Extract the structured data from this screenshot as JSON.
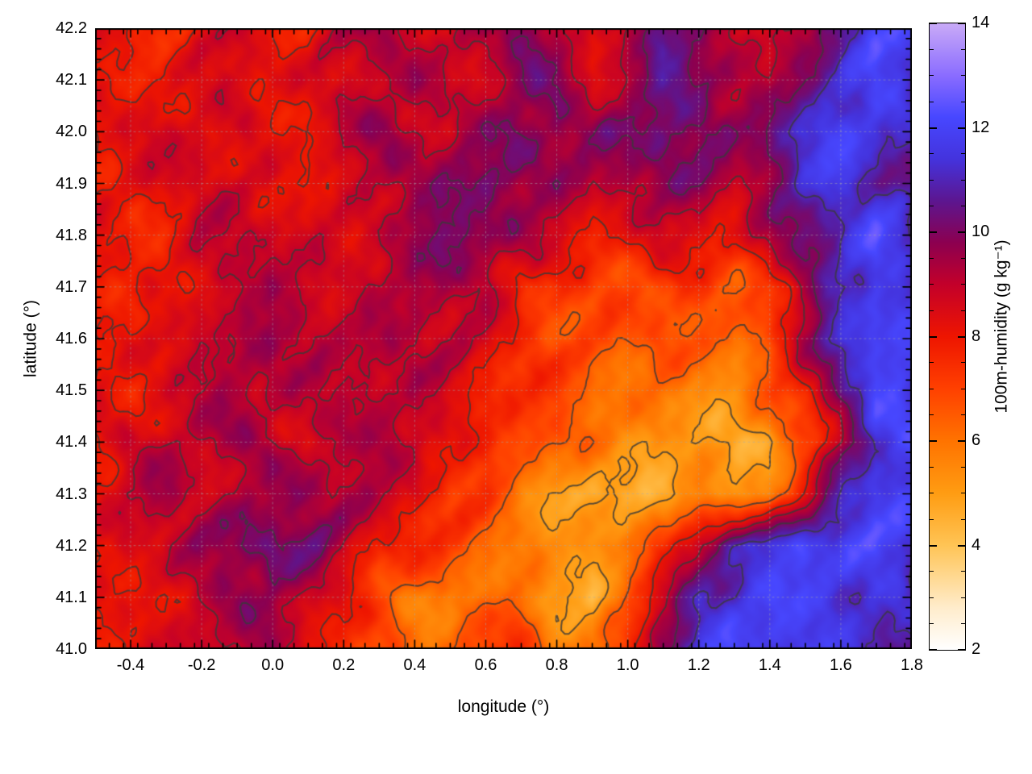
{
  "chart_data": {
    "type": "heatmap",
    "title": "",
    "xlabel": "longitude (°)",
    "ylabel": "latitude (°)",
    "colorbar_label": "100m-humidity (g kg⁻¹)",
    "xlim": [
      -0.5,
      1.8
    ],
    "ylim": [
      41.0,
      42.2
    ],
    "clim": [
      2,
      14
    ],
    "grid": "dotted",
    "x_tick_values": [
      -0.4,
      -0.2,
      0.0,
      0.2,
      0.4,
      0.6,
      0.8,
      1.0,
      1.2,
      1.4,
      1.6,
      1.8
    ],
    "x_tick_labels": [
      "-0.4",
      "-0.2",
      "0.0",
      "0.2",
      "0.4",
      "0.6",
      "0.8",
      "1.0",
      "1.2",
      "1.4",
      "1.6",
      "1.8"
    ],
    "y_tick_values": [
      41.0,
      41.1,
      41.2,
      41.3,
      41.4,
      41.5,
      41.6,
      41.7,
      41.8,
      41.9,
      42.0,
      42.1,
      42.2
    ],
    "y_tick_labels": [
      "41.0",
      "41.1",
      "41.2",
      "41.3",
      "41.4",
      "41.5",
      "41.6",
      "41.7",
      "41.8",
      "41.9",
      "42.0",
      "42.1",
      "42.2"
    ],
    "cb_tick_values": [
      2,
      4,
      6,
      8,
      10,
      12,
      14
    ],
    "cb_tick_labels": [
      "2",
      "4",
      "6",
      "8",
      "10",
      "12",
      "14"
    ],
    "contour": {
      "color": "#3a3a3a",
      "levels": [
        5,
        6.5,
        8,
        9,
        10,
        11
      ]
    },
    "colormap": [
      [
        2.0,
        "#ffffff"
      ],
      [
        2.8,
        "#ffeccc"
      ],
      [
        4.0,
        "#ffc455"
      ],
      [
        5.0,
        "#ff9c12"
      ],
      [
        6.0,
        "#ff7300"
      ],
      [
        7.0,
        "#ff4000"
      ],
      [
        8.0,
        "#ee1500"
      ],
      [
        9.0,
        "#c3002a"
      ],
      [
        9.8,
        "#8c0050"
      ],
      [
        10.6,
        "#5c1690"
      ],
      [
        11.4,
        "#4433dd"
      ],
      [
        12.2,
        "#4747ff"
      ],
      [
        13.0,
        "#8a6cff"
      ],
      [
        14.0,
        "#c9aaf7"
      ]
    ],
    "grid_lon": [
      -0.5,
      -0.4,
      -0.3,
      -0.2,
      -0.1,
      0.0,
      0.1,
      0.2,
      0.3,
      0.4,
      0.5,
      0.6,
      0.7,
      0.8,
      0.9,
      1.0,
      1.1,
      1.2,
      1.3,
      1.4,
      1.5,
      1.6,
      1.7,
      1.8
    ],
    "grid_lat": [
      42.2,
      42.1,
      42.0,
      41.9,
      41.8,
      41.7,
      41.6,
      41.5,
      41.4,
      41.3,
      41.2,
      41.1,
      41.0
    ],
    "values": [
      [
        8.0,
        7.8,
        7.8,
        8.2,
        8.5,
        8.2,
        8.0,
        8.8,
        9.6,
        9.0,
        8.4,
        9.4,
        10.0,
        9.2,
        8.2,
        9.2,
        10.4,
        10.0,
        9.0,
        8.2,
        9.2,
        11.0,
        12.0,
        11.6
      ],
      [
        8.0,
        7.8,
        8.0,
        8.4,
        8.8,
        8.4,
        8.2,
        8.6,
        9.4,
        9.2,
        8.6,
        9.0,
        10.0,
        9.6,
        8.6,
        9.4,
        10.4,
        10.0,
        9.6,
        9.0,
        10.0,
        11.4,
        12.0,
        11.4
      ],
      [
        8.2,
        8.4,
        8.8,
        8.6,
        8.2,
        8.0,
        8.4,
        9.0,
        9.4,
        9.2,
        9.0,
        9.4,
        10.0,
        10.0,
        9.6,
        10.0,
        10.4,
        10.0,
        9.6,
        10.4,
        11.4,
        12.0,
        11.6,
        11.0
      ],
      [
        8.0,
        8.0,
        8.4,
        9.0,
        8.6,
        8.2,
        8.0,
        8.6,
        9.0,
        9.6,
        10.0,
        10.0,
        10.0,
        9.6,
        9.0,
        9.6,
        10.0,
        9.6,
        9.0,
        10.0,
        11.0,
        11.6,
        11.0,
        10.6
      ],
      [
        8.0,
        7.8,
        8.0,
        8.6,
        9.0,
        9.0,
        8.6,
        8.2,
        9.0,
        9.6,
        10.0,
        10.0,
        9.4,
        8.6,
        8.0,
        8.0,
        8.4,
        8.8,
        8.0,
        9.0,
        10.4,
        11.4,
        12.0,
        11.0
      ],
      [
        8.0,
        7.6,
        8.0,
        8.6,
        9.0,
        9.4,
        9.0,
        8.6,
        9.0,
        9.6,
        9.4,
        9.0,
        8.0,
        7.4,
        7.0,
        7.0,
        7.4,
        7.0,
        6.6,
        7.6,
        9.0,
        11.0,
        12.0,
        11.4
      ],
      [
        8.0,
        8.0,
        8.4,
        9.0,
        9.0,
        9.4,
        9.4,
        9.0,
        9.0,
        9.4,
        9.0,
        8.4,
        7.6,
        7.0,
        6.6,
        6.6,
        7.0,
        6.6,
        6.0,
        7.0,
        9.4,
        11.4,
        12.0,
        12.0
      ],
      [
        8.0,
        8.0,
        8.6,
        9.0,
        9.4,
        9.4,
        9.0,
        9.0,
        9.4,
        9.0,
        8.6,
        8.0,
        7.6,
        7.0,
        6.6,
        6.0,
        6.0,
        5.6,
        5.6,
        6.6,
        8.0,
        10.4,
        12.0,
        11.6
      ],
      [
        8.0,
        8.4,
        9.0,
        9.0,
        9.4,
        9.0,
        8.6,
        9.0,
        9.4,
        9.0,
        8.0,
        7.6,
        7.0,
        6.6,
        6.0,
        5.6,
        5.0,
        5.0,
        4.6,
        5.0,
        6.6,
        9.0,
        11.4,
        12.0
      ],
      [
        8.4,
        9.0,
        9.4,
        9.0,
        9.0,
        9.4,
        10.0,
        9.4,
        9.0,
        8.6,
        7.6,
        7.0,
        6.0,
        5.0,
        4.6,
        4.4,
        5.0,
        5.6,
        5.0,
        6.0,
        8.0,
        11.0,
        12.0,
        12.0
      ],
      [
        8.0,
        8.4,
        9.0,
        9.4,
        10.0,
        10.4,
        10.0,
        9.0,
        8.0,
        7.6,
        7.0,
        6.6,
        5.6,
        5.0,
        5.6,
        6.0,
        7.0,
        9.0,
        11.0,
        11.4,
        12.0,
        12.0,
        12.0,
        11.4
      ],
      [
        8.0,
        8.0,
        8.4,
        9.0,
        9.4,
        10.0,
        9.0,
        8.0,
        7.0,
        6.0,
        5.6,
        6.0,
        6.6,
        4.8,
        4.4,
        6.6,
        9.0,
        11.0,
        11.4,
        12.0,
        12.0,
        11.6,
        11.4,
        11.0
      ],
      [
        8.0,
        8.0,
        8.4,
        9.0,
        9.4,
        9.0,
        8.4,
        7.6,
        6.6,
        6.0,
        6.4,
        7.0,
        7.4,
        6.0,
        5.6,
        7.4,
        10.0,
        11.4,
        12.0,
        12.0,
        11.6,
        11.4,
        11.0,
        11.0
      ]
    ]
  }
}
